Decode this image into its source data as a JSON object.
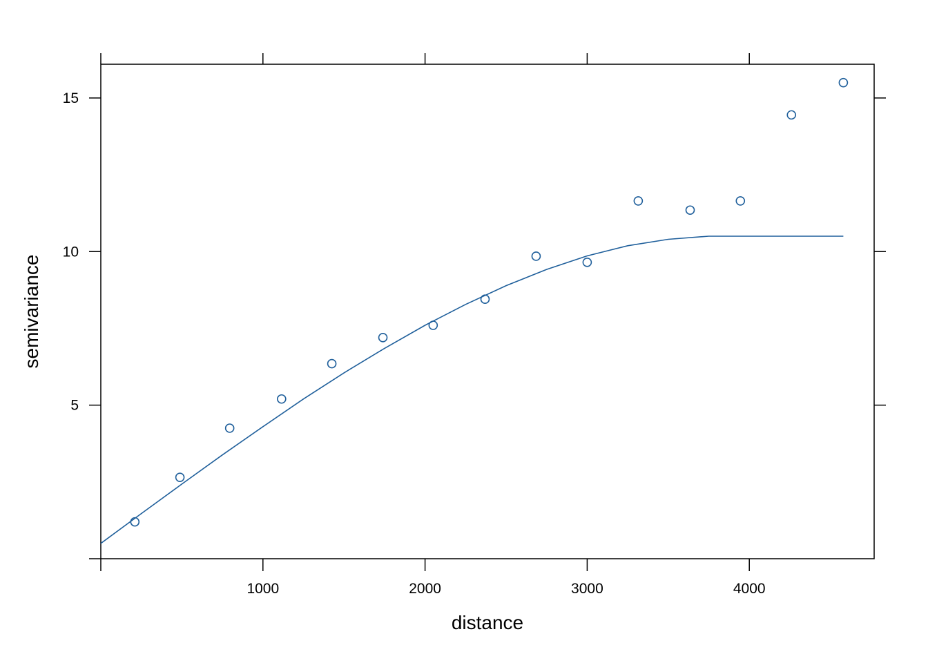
{
  "chart_data": {
    "type": "scatter",
    "title": "",
    "xlabel": "distance",
    "ylabel": "semivariance",
    "xlim": [
      0,
      4770
    ],
    "ylim": [
      0,
      16.1
    ],
    "x_ticks": [
      1000,
      2000,
      3000,
      4000
    ],
    "y_ticks": [
      5,
      10,
      15
    ],
    "grid": false,
    "colors": {
      "series": "#1f5f9b",
      "frame": "#000000"
    },
    "points": {
      "x": [
        210,
        488,
        795,
        1115,
        1425,
        1740,
        2050,
        2370,
        2685,
        3000,
        3315,
        3635,
        3945,
        4260,
        4580
      ],
      "y": [
        1.2,
        2.65,
        4.25,
        5.2,
        6.35,
        7.2,
        7.6,
        8.45,
        9.85,
        9.65,
        11.65,
        11.35,
        11.65,
        14.45,
        15.5
      ]
    },
    "model_line": {
      "x": [
        0,
        250,
        500,
        750,
        1000,
        1250,
        1500,
        1750,
        2000,
        2250,
        2500,
        2750,
        3000,
        3250,
        3500,
        3750,
        4000,
        4250,
        4580
      ],
      "y": [
        0.5,
        1.47,
        2.43,
        3.38,
        4.3,
        5.2,
        6.05,
        6.85,
        7.6,
        8.28,
        8.89,
        9.42,
        9.86,
        10.19,
        10.4,
        10.5,
        10.5,
        10.5,
        10.5
      ]
    }
  }
}
